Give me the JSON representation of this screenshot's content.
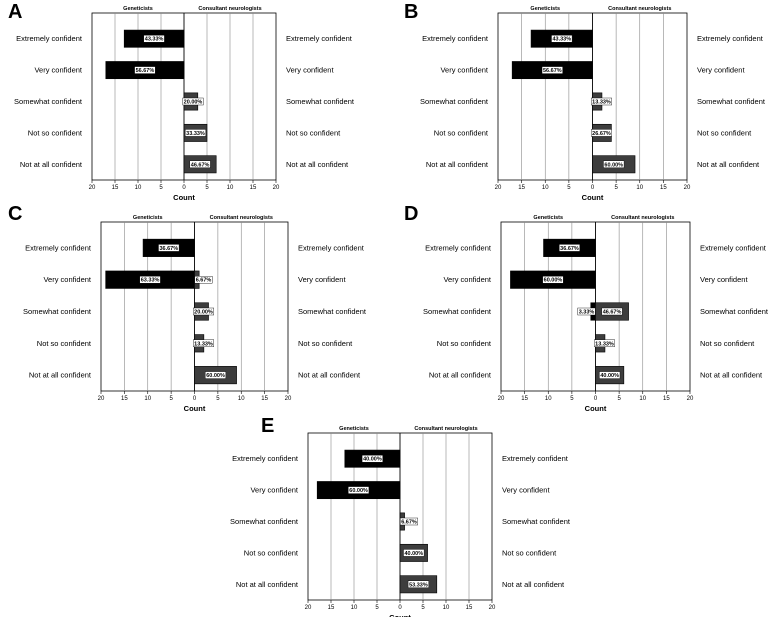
{
  "figure": {
    "axis_title": "Count",
    "left_header": "Geneticists",
    "right_header": "Consultant neurologists"
  },
  "chart_data": [
    {
      "panel": "A",
      "type": "bar",
      "orientation": "population-pyramid",
      "categories": [
        "Extremely confident",
        "Very confident",
        "Somewhat confident",
        "Not so confident",
        "Not at all confident"
      ],
      "xlim": [
        -20,
        20
      ],
      "tick_labels": [
        "20",
        "15",
        "10",
        "5",
        "0",
        "5",
        "10",
        "15",
        "20"
      ],
      "series": [
        {
          "name": "Geneticists",
          "values": [
            13,
            17,
            0,
            0,
            0
          ],
          "labels": [
            "43.33%",
            "56.67%",
            "",
            "",
            ""
          ]
        },
        {
          "name": "Consultant neurologists",
          "values": [
            0,
            0,
            3,
            5,
            7
          ],
          "labels": [
            "",
            "",
            "20.00%",
            "33.33%",
            "46.67%"
          ]
        }
      ]
    },
    {
      "panel": "B",
      "type": "bar",
      "orientation": "population-pyramid",
      "categories": [
        "Extremely confident",
        "Very confident",
        "Somewhat confident",
        "Not so confident",
        "Not at all confident"
      ],
      "xlim": [
        -20,
        20
      ],
      "tick_labels": [
        "20",
        "15",
        "10",
        "5",
        "0",
        "5",
        "10",
        "15",
        "20"
      ],
      "series": [
        {
          "name": "Geneticists",
          "values": [
            13,
            17,
            0,
            0,
            0
          ],
          "labels": [
            "43.33%",
            "56.67%",
            "",
            "",
            ""
          ]
        },
        {
          "name": "Consultant neurologists",
          "values": [
            0,
            0,
            2,
            4,
            9
          ],
          "labels": [
            "",
            "",
            "13.33%",
            "26.67%",
            "60.00%"
          ]
        }
      ]
    },
    {
      "panel": "C",
      "type": "bar",
      "orientation": "population-pyramid",
      "categories": [
        "Extremely confident",
        "Very confident",
        "Somewhat confident",
        "Not so confident",
        "Not at all confident"
      ],
      "xlim": [
        -20,
        20
      ],
      "tick_labels": [
        "20",
        "15",
        "10",
        "5",
        "0",
        "5",
        "10",
        "15",
        "20"
      ],
      "series": [
        {
          "name": "Geneticists",
          "values": [
            11,
            19,
            0,
            0,
            0
          ],
          "labels": [
            "36.67%",
            "63.33%",
            "",
            "",
            ""
          ]
        },
        {
          "name": "Consultant neurologists",
          "values": [
            0,
            1,
            3,
            2,
            9
          ],
          "labels": [
            "",
            "6.67%",
            "20.00%",
            "13.33%",
            "60.00%"
          ]
        }
      ]
    },
    {
      "panel": "D",
      "type": "bar",
      "orientation": "population-pyramid",
      "categories": [
        "Extremely confident",
        "Very confident",
        "Somewhat confident",
        "Not so confident",
        "Not at all confident"
      ],
      "xlim": [
        -20,
        20
      ],
      "tick_labels": [
        "20",
        "15",
        "10",
        "5",
        "0",
        "5",
        "10",
        "15",
        "20"
      ],
      "series": [
        {
          "name": "Geneticists",
          "values": [
            11,
            18,
            1,
            0,
            0
          ],
          "labels": [
            "36.67%",
            "60.00%",
            "3.33%",
            "",
            ""
          ]
        },
        {
          "name": "Consultant neurologists",
          "values": [
            0,
            0,
            7,
            2,
            6
          ],
          "labels": [
            "",
            "",
            "46.67%",
            "13.33%",
            "40.00%"
          ]
        }
      ]
    },
    {
      "panel": "E",
      "type": "bar",
      "orientation": "population-pyramid",
      "categories": [
        "Extremely confident",
        "Very confident",
        "Somewhat confident",
        "Not so confident",
        "Not at all confident"
      ],
      "xlim": [
        -20,
        20
      ],
      "tick_labels": [
        "20",
        "15",
        "10",
        "5",
        "0",
        "5",
        "10",
        "15",
        "20"
      ],
      "series": [
        {
          "name": "Geneticists",
          "values": [
            12,
            18,
            0,
            0,
            0
          ],
          "labels": [
            "40.00%",
            "60.00%",
            "",
            "",
            ""
          ]
        },
        {
          "name": "Consultant neurologists",
          "values": [
            0,
            0,
            1,
            6,
            8
          ],
          "labels": [
            "",
            "",
            "6.67%",
            "40.00%",
            "53.33%"
          ]
        }
      ]
    }
  ],
  "colors": {
    "geneticists": "#000000",
    "neurologists": "#3d3d3d",
    "gridline": "#8a8a8a",
    "axis": "#000000"
  }
}
